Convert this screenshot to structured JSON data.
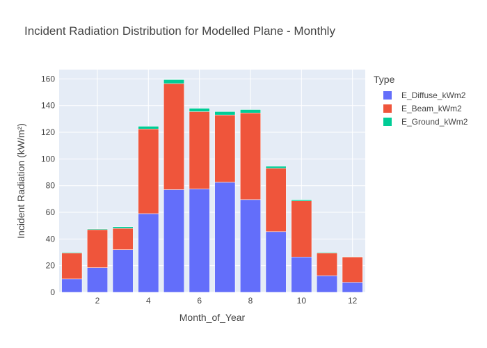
{
  "chart_data": {
    "type": "bar",
    "barmode": "stack",
    "title": "Incident Radiation Distribution for Modelled Plane - Monthly",
    "xlabel": "Month_of_Year",
    "ylabel": "Incident Radiation (kW/m²)",
    "xlim": [
      0.5,
      12.5
    ],
    "ylim": [
      0,
      167
    ],
    "xticks": [
      2,
      4,
      6,
      8,
      10,
      12
    ],
    "yticks": [
      0,
      20,
      40,
      60,
      80,
      100,
      120,
      140,
      160
    ],
    "grid": true,
    "legend_title": "Type",
    "legend_position": "top-right",
    "x": [
      1,
      2,
      3,
      4,
      5,
      6,
      7,
      8,
      9,
      10,
      11,
      12
    ],
    "series": [
      {
        "name": "E_Diffuse_kWm2",
        "color": "#636efa",
        "values": [
          10,
          18.5,
          32,
          59,
          77,
          77.5,
          82.5,
          69.5,
          45.5,
          26.5,
          12.5,
          7.5
        ]
      },
      {
        "name": "E_Beam_kWm2",
        "color": "#ef553b",
        "values": [
          19.5,
          28.5,
          16,
          63.5,
          79.5,
          58,
          50.5,
          65,
          47.5,
          42,
          17,
          19
        ]
      },
      {
        "name": "E_Ground_kWm2",
        "color": "#00cc96",
        "values": [
          0.5,
          0.6,
          1.2,
          2,
          3,
          2.5,
          2.5,
          2.5,
          1.5,
          1,
          0.5,
          0.3
        ]
      }
    ]
  }
}
